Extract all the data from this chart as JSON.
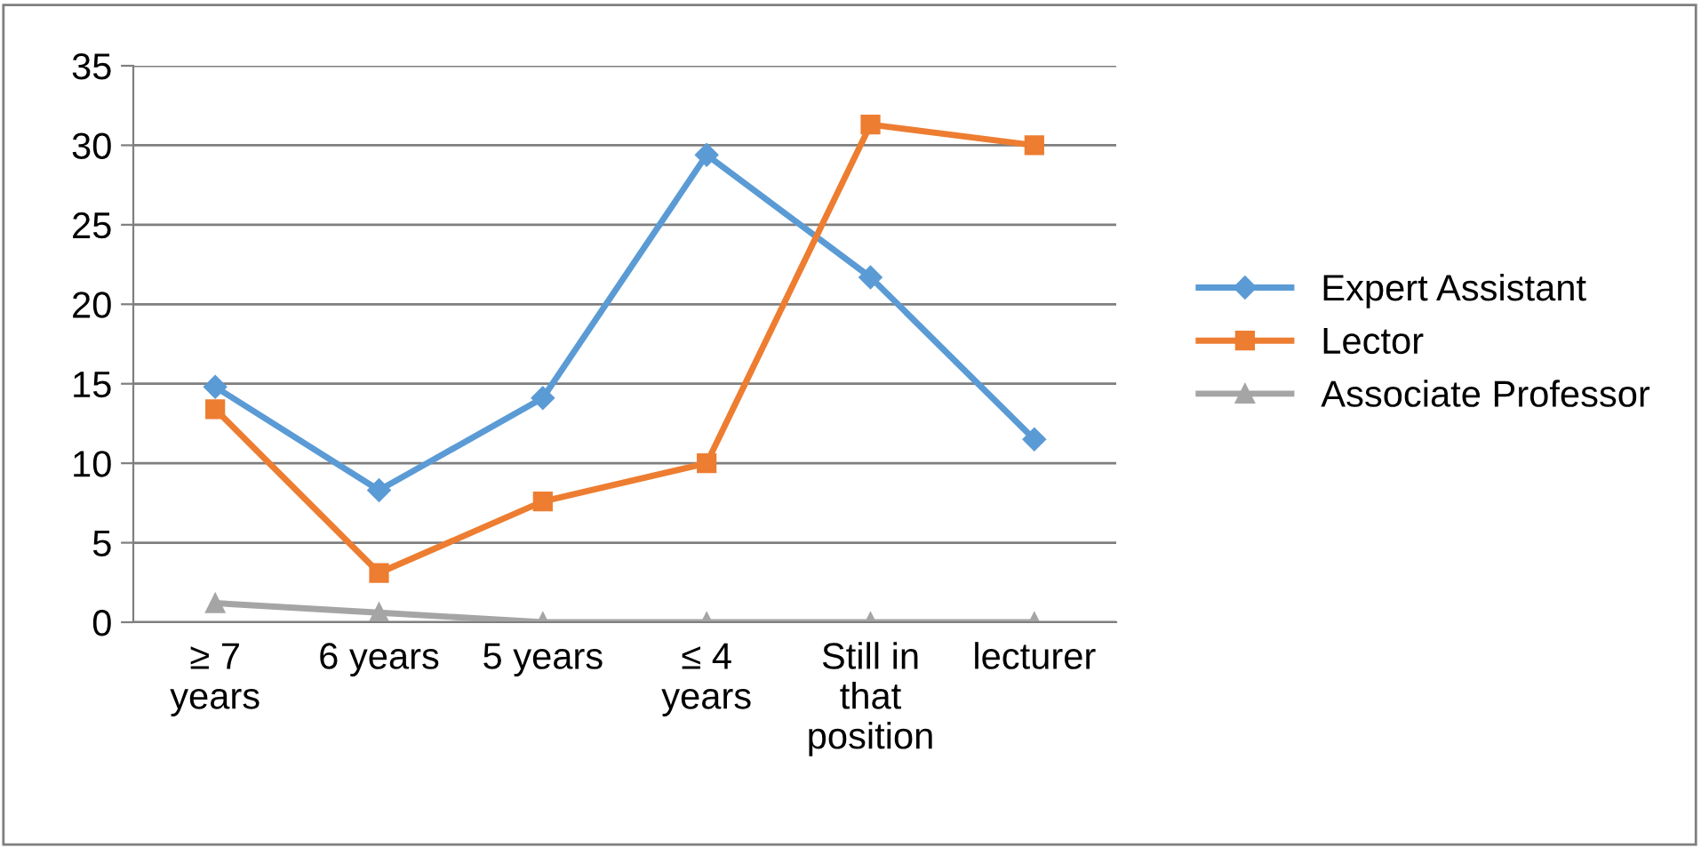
{
  "chart_data": {
    "type": "line",
    "categories": [
      "≥ 7\nyears",
      "6 years",
      "5 years",
      "≤ 4\nyears",
      "Still in\nthat\nposition",
      "lecturer"
    ],
    "series": [
      {
        "name": "Expert Assistant",
        "color": "#5b9bd5",
        "marker": "diamond",
        "values": [
          14.8,
          8.3,
          14.1,
          29.4,
          21.7,
          11.5
        ]
      },
      {
        "name": "Lector",
        "color": "#ed7d31",
        "marker": "square",
        "values": [
          13.4,
          3.1,
          7.6,
          10.0,
          31.3,
          30.0
        ]
      },
      {
        "name": "Associate Professor",
        "color": "#a5a5a5",
        "marker": "triangle",
        "values": [
          1.2,
          0.6,
          0,
          0,
          0,
          0
        ]
      }
    ],
    "ylim": [
      0,
      35
    ],
    "yticks": [
      0,
      5,
      10,
      15,
      20,
      25,
      30,
      35
    ],
    "grid": "y",
    "legend": "right"
  }
}
